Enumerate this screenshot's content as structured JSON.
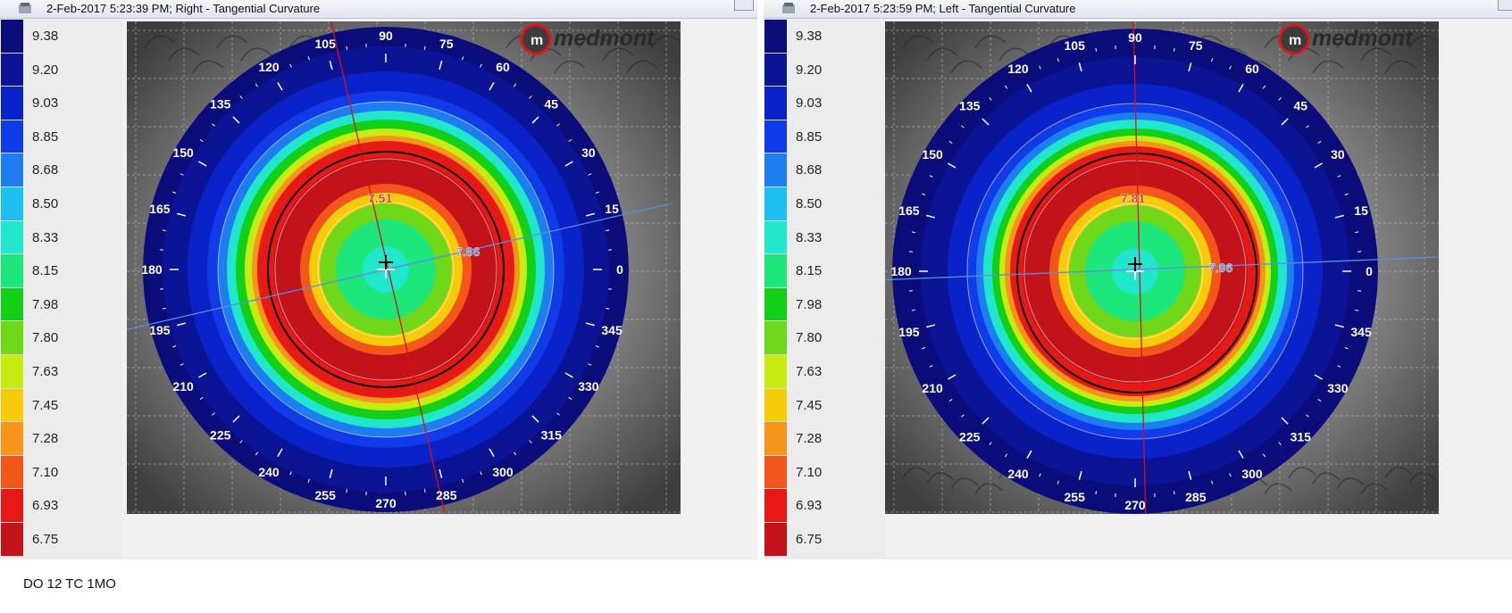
{
  "panels": [
    {
      "title": "2-Feb-2017 5:23:39 PM; Right - Tangential Curvature",
      "reading": "7.86",
      "cap_label": "7.51",
      "logo": "medmont"
    },
    {
      "title": "2-Feb-2017 5:23:59 PM; Left - Tangential Curvature",
      "reading": "7.96",
      "cap_label": "7.81",
      "logo": "medmont"
    }
  ],
  "legend": {
    "values": [
      "9.38",
      "9.20",
      "9.03",
      "8.85",
      "8.68",
      "8.50",
      "8.33",
      "8.15",
      "7.98",
      "7.80",
      "7.63",
      "7.45",
      "7.28",
      "7.10",
      "6.93",
      "6.75"
    ],
    "colors": [
      "#0a0c7a",
      "#0b1495",
      "#0a23c8",
      "#0f3ce8",
      "#1e7ef0",
      "#1ec0f2",
      "#20e6cc",
      "#1ce67c",
      "#12d018",
      "#70d81a",
      "#c8ec12",
      "#f5cb0a",
      "#f7941a",
      "#f2561a",
      "#e51a16",
      "#c2121a"
    ]
  },
  "angles": [
    "90",
    "75",
    "60",
    "45",
    "30",
    "15",
    "0",
    "345",
    "330",
    "315",
    "300",
    "285",
    "270",
    "255",
    "240",
    "225",
    "210",
    "195",
    "180",
    "165",
    "150",
    "135",
    "120",
    "105"
  ],
  "footer": "DO 12 TC 1MO"
}
